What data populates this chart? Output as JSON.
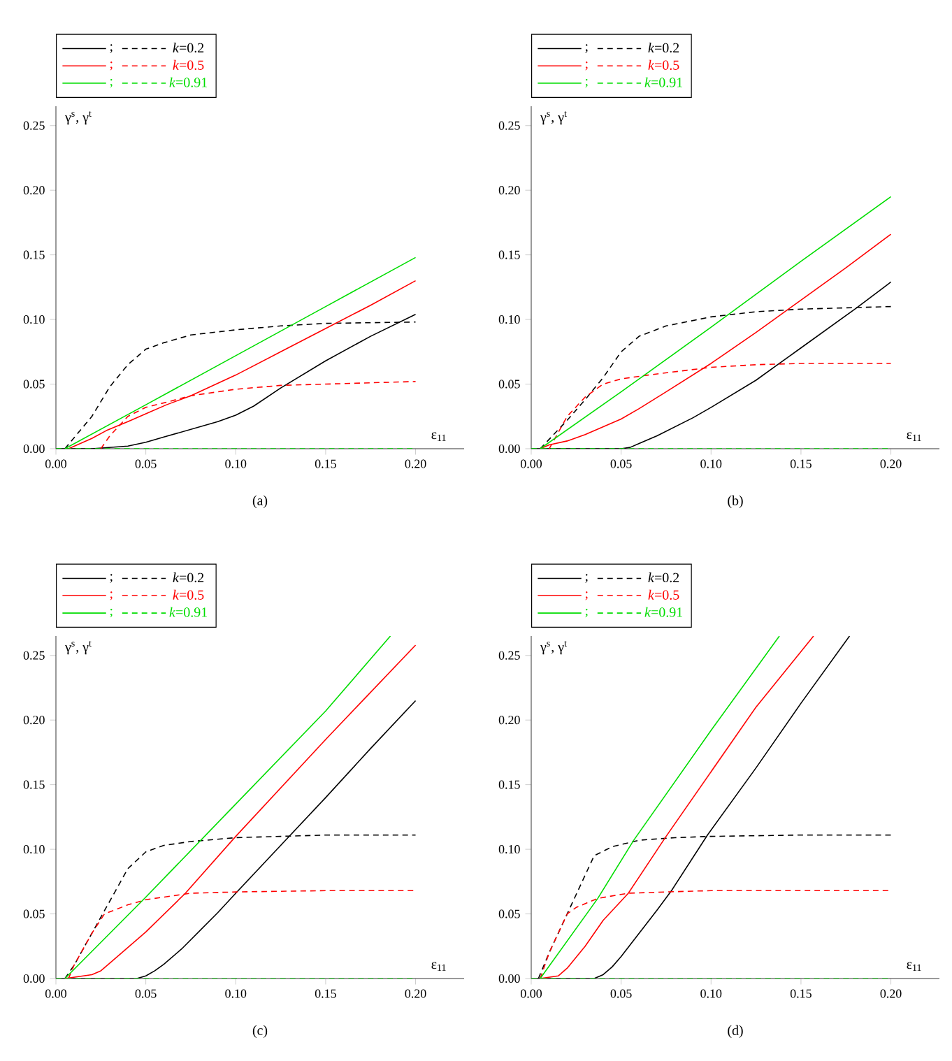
{
  "chart_data": [
    {
      "type": "line",
      "title": "(a)",
      "xlabel": "ε$_{11}$",
      "ylabel": "γ$^{s}$, γ$^{t}$",
      "xlim": [
        0,
        0.227
      ],
      "ylim": [
        0,
        0.265
      ],
      "xticks": [
        {
          "value": 0,
          "label": "0.00"
        },
        {
          "value": 0.05,
          "label": "0.05"
        },
        {
          "value": 0.1,
          "label": "0.10"
        },
        {
          "value": 0.15,
          "label": "0.15"
        },
        {
          "value": 0.2,
          "label": "0.20"
        }
      ],
      "yticks": [
        {
          "value": 0,
          "label": "0.00"
        },
        {
          "value": 0.05,
          "label": "0.05"
        },
        {
          "value": 0.1,
          "label": "0.10"
        },
        {
          "value": 0.15,
          "label": "0.15"
        },
        {
          "value": 0.2,
          "label": "0.20"
        },
        {
          "value": 0.25,
          "label": "0.25"
        }
      ],
      "legend": "top left",
      "series": [
        {
          "name": ";",
          "color": "#000000",
          "line_style": "solid",
          "x": [
            0,
            0.02,
            0.03,
            0.04,
            0.05,
            0.06,
            0.07,
            0.08,
            0.09,
            0.1,
            0.11,
            0.125,
            0.15,
            0.175,
            0.2
          ],
          "values": [
            0,
            0,
            0.001,
            0.002,
            0.005,
            0.009,
            0.013,
            0.017,
            0.021,
            0.026,
            0.033,
            0.047,
            0.068,
            0.087,
            0.104
          ]
        },
        {
          "name": "*k*=0.2",
          "color": "#000000",
          "line_style": "dashed",
          "x": [
            0.005,
            0.02,
            0.03,
            0.04,
            0.05,
            0.06,
            0.075,
            0.1,
            0.125,
            0.15,
            0.2
          ],
          "values": [
            0,
            0.025,
            0.048,
            0.065,
            0.077,
            0.082,
            0.088,
            0.092,
            0.095,
            0.097,
            0.098
          ]
        },
        {
          "name": ";",
          "color": "#ff0000",
          "line_style": "solid",
          "x": [
            0.007,
            0.02,
            0.028,
            0.04,
            0.05,
            0.0615,
            0.075,
            0.1,
            0.125,
            0.15,
            0.175,
            0.2
          ],
          "values": [
            0,
            0.008,
            0.014,
            0.021,
            0.027,
            0.034,
            0.041,
            0.057,
            0.075,
            0.093,
            0.111,
            0.13
          ]
        },
        {
          "name": "*k*=0.5",
          "color": "#ff0000",
          "line_style": "dashed",
          "x": [
            0.025,
            0.03,
            0.04,
            0.05,
            0.0615,
            0.075,
            0.1,
            0.125,
            0.15,
            0.2
          ],
          "values": [
            0,
            0.01,
            0.025,
            0.032,
            0.036,
            0.041,
            0.046,
            0.049,
            0.05,
            0.052
          ]
        },
        {
          "name": ";",
          "color": "#00dd00",
          "line_style": "solid",
          "x": [
            0.005,
            0.05,
            0.1,
            0.15,
            0.2
          ],
          "values": [
            0,
            0.034,
            0.072,
            0.11,
            0.148
          ]
        },
        {
          "name": "*k*=0.91",
          "color": "#00dd00",
          "line_style": "dashed",
          "x": [
            0,
            0.2
          ],
          "values": [
            0,
            0
          ]
        }
      ]
    },
    {
      "type": "line",
      "title": "(b)",
      "xlabel": "ε$_{11}$",
      "ylabel": "γ$^{s}$, γ$^{t}$",
      "xlim": [
        0,
        0.227
      ],
      "ylim": [
        0,
        0.265
      ],
      "xticks": [
        {
          "value": 0,
          "label": "0.00"
        },
        {
          "value": 0.05,
          "label": "0.05"
        },
        {
          "value": 0.1,
          "label": "0.10"
        },
        {
          "value": 0.15,
          "label": "0.15"
        },
        {
          "value": 0.2,
          "label": "0.20"
        }
      ],
      "yticks": [
        {
          "value": 0,
          "label": "0.00"
        },
        {
          "value": 0.05,
          "label": "0.05"
        },
        {
          "value": 0.1,
          "label": "0.10"
        },
        {
          "value": 0.15,
          "label": "0.15"
        },
        {
          "value": 0.2,
          "label": "0.20"
        },
        {
          "value": 0.25,
          "label": "0.25"
        }
      ],
      "legend": "top left",
      "series": [
        {
          "name": ";",
          "color": "#000000",
          "line_style": "solid",
          "x": [
            0,
            0.05,
            0.055,
            0.06,
            0.07,
            0.08,
            0.09,
            0.1,
            0.125,
            0.138,
            0.15,
            0.181,
            0.2
          ],
          "values": [
            0,
            0,
            0.001,
            0.004,
            0.01,
            0.017,
            0.024,
            0.032,
            0.053,
            0.066,
            0.078,
            0.109,
            0.129
          ]
        },
        {
          "name": "*k*=0.2",
          "color": "#000000",
          "line_style": "dashed",
          "x": [
            0.005,
            0.02,
            0.03,
            0.04,
            0.05,
            0.06,
            0.075,
            0.1,
            0.125,
            0.15,
            0.2
          ],
          "values": [
            0,
            0.022,
            0.038,
            0.055,
            0.075,
            0.087,
            0.095,
            0.102,
            0.106,
            0.108,
            0.11
          ]
        },
        {
          "name": ";",
          "color": "#ff0000",
          "line_style": "solid",
          "x": [
            0.005,
            0.01,
            0.02,
            0.03,
            0.04,
            0.05,
            0.06,
            0.075,
            0.1,
            0.125,
            0.15,
            0.175,
            0.2
          ],
          "values": [
            0,
            0.003,
            0.006,
            0.011,
            0.017,
            0.023,
            0.031,
            0.044,
            0.066,
            0.09,
            0.115,
            0.14,
            0.166
          ]
        },
        {
          "name": "*k*=0.5",
          "color": "#ff0000",
          "line_style": "dashed",
          "x": [
            0.01,
            0.02,
            0.03,
            0.04,
            0.05,
            0.065,
            0.1,
            0.125,
            0.15,
            0.2
          ],
          "values": [
            0,
            0.025,
            0.04,
            0.05,
            0.054,
            0.057,
            0.063,
            0.065,
            0.066,
            0.066
          ]
        },
        {
          "name": ";",
          "color": "#00dd00",
          "line_style": "solid",
          "x": [
            0.005,
            0.05,
            0.1,
            0.15,
            0.2
          ],
          "values": [
            0,
            0.044,
            0.094,
            0.145,
            0.195
          ]
        },
        {
          "name": "*k*=0.91",
          "color": "#00dd00",
          "line_style": "dashed",
          "x": [
            0,
            0.2
          ],
          "values": [
            0,
            0
          ]
        }
      ]
    },
    {
      "type": "line",
      "title": "(c)",
      "xlabel": "ε$_{11}$",
      "ylabel": "γ$^{s}$, γ$^{t}$",
      "xlim": [
        0,
        0.227
      ],
      "ylim": [
        0,
        0.265
      ],
      "xticks": [
        {
          "value": 0,
          "label": "0.00"
        },
        {
          "value": 0.05,
          "label": "0.05"
        },
        {
          "value": 0.1,
          "label": "0.10"
        },
        {
          "value": 0.15,
          "label": "0.15"
        },
        {
          "value": 0.2,
          "label": "0.20"
        }
      ],
      "yticks": [
        {
          "value": 0,
          "label": "0.00"
        },
        {
          "value": 0.05,
          "label": "0.05"
        },
        {
          "value": 0.1,
          "label": "0.10"
        },
        {
          "value": 0.15,
          "label": "0.15"
        },
        {
          "value": 0.2,
          "label": "0.20"
        },
        {
          "value": 0.25,
          "label": "0.25"
        }
      ],
      "legend": "top left",
      "series": [
        {
          "name": ";",
          "color": "#000000",
          "line_style": "solid",
          "x": [
            0,
            0.045,
            0.05,
            0.055,
            0.06,
            0.07,
            0.08,
            0.09,
            0.1,
            0.125,
            0.15,
            0.175,
            0.2
          ],
          "values": [
            0,
            0,
            0.002,
            0.006,
            0.011,
            0.023,
            0.037,
            0.051,
            0.066,
            0.103,
            0.14,
            0.178,
            0.215
          ]
        },
        {
          "name": "*k*=0.2",
          "color": "#000000",
          "line_style": "dashed",
          "x": [
            0.005,
            0.01,
            0.02,
            0.03,
            0.04,
            0.05,
            0.06,
            0.075,
            0.1,
            0.15,
            0.2
          ],
          "values": [
            0,
            0.01,
            0.035,
            0.06,
            0.085,
            0.098,
            0.103,
            0.106,
            0.109,
            0.111,
            0.111
          ]
        },
        {
          "name": ";",
          "color": "#ff0000",
          "line_style": "solid",
          "x": [
            0.005,
            0.02,
            0.025,
            0.03,
            0.04,
            0.05,
            0.072,
            0.1,
            0.15,
            0.2
          ],
          "values": [
            0,
            0.003,
            0.006,
            0.012,
            0.024,
            0.036,
            0.066,
            0.11,
            0.185,
            0.258
          ]
        },
        {
          "name": "*k*=0.5",
          "color": "#ff0000",
          "line_style": "dashed",
          "x": [
            0.007,
            0.01,
            0.02,
            0.027,
            0.04,
            0.05,
            0.075,
            0.1,
            0.15,
            0.2
          ],
          "values": [
            0,
            0.01,
            0.035,
            0.05,
            0.057,
            0.061,
            0.066,
            0.067,
            0.068,
            0.068
          ]
        },
        {
          "name": ";",
          "color": "#00dd00",
          "line_style": "solid",
          "x": [
            0.005,
            0.05,
            0.1,
            0.15,
            0.186
          ],
          "values": [
            0,
            0.063,
            0.135,
            0.207,
            0.265
          ]
        },
        {
          "name": "*k*=0.91",
          "color": "#00dd00",
          "line_style": "dashed",
          "x": [
            0,
            0.2
          ],
          "values": [
            0,
            0
          ]
        }
      ]
    },
    {
      "type": "line",
      "title": "(d)",
      "xlabel": "ε$_{11}$",
      "ylabel": "γ$^{s}$, γ$^{t}$",
      "xlim": [
        0,
        0.227
      ],
      "ylim": [
        0,
        0.265
      ],
      "xticks": [
        {
          "value": 0,
          "label": "0.00"
        },
        {
          "value": 0.05,
          "label": "0.05"
        },
        {
          "value": 0.1,
          "label": "0.10"
        },
        {
          "value": 0.15,
          "label": "0.15"
        },
        {
          "value": 0.2,
          "label": "0.20"
        }
      ],
      "yticks": [
        {
          "value": 0,
          "label": "0.00"
        },
        {
          "value": 0.05,
          "label": "0.05"
        },
        {
          "value": 0.1,
          "label": "0.10"
        },
        {
          "value": 0.15,
          "label": "0.15"
        },
        {
          "value": 0.2,
          "label": "0.20"
        },
        {
          "value": 0.25,
          "label": "0.25"
        }
      ],
      "legend": "top left",
      "series": [
        {
          "name": ";",
          "color": "#000000",
          "line_style": "solid",
          "x": [
            0,
            0.035,
            0.04,
            0.045,
            0.05,
            0.06,
            0.07,
            0.078,
            0.098,
            0.125,
            0.15,
            0.177
          ],
          "values": [
            0,
            0,
            0.003,
            0.009,
            0.017,
            0.035,
            0.053,
            0.068,
            0.111,
            0.163,
            0.213,
            0.265
          ]
        },
        {
          "name": "*k*=0.2",
          "color": "#000000",
          "line_style": "dashed",
          "x": [
            0.004,
            0.01,
            0.02,
            0.03,
            0.035,
            0.045,
            0.06,
            0.08,
            0.1,
            0.15,
            0.2
          ],
          "values": [
            0,
            0.02,
            0.05,
            0.08,
            0.095,
            0.102,
            0.107,
            0.109,
            0.11,
            0.111,
            0.111
          ]
        },
        {
          "name": ";",
          "color": "#ff0000",
          "line_style": "solid",
          "x": [
            0.005,
            0.015,
            0.02,
            0.03,
            0.04,
            0.054,
            0.075,
            0.1,
            0.125,
            0.157
          ],
          "values": [
            0,
            0.002,
            0.008,
            0.025,
            0.045,
            0.066,
            0.11,
            0.16,
            0.21,
            0.265
          ]
        },
        {
          "name": "*k*=0.5",
          "color": "#ff0000",
          "line_style": "dashed",
          "x": [
            0.005,
            0.01,
            0.02,
            0.025,
            0.037,
            0.054,
            0.075,
            0.1,
            0.15,
            0.2
          ],
          "values": [
            0,
            0.02,
            0.05,
            0.055,
            0.062,
            0.066,
            0.067,
            0.068,
            0.068,
            0.068
          ]
        },
        {
          "name": ";",
          "color": "#00dd00",
          "line_style": "solid",
          "x": [
            0.005,
            0.037,
            0.057,
            0.1,
            0.138
          ],
          "values": [
            0,
            0.062,
            0.107,
            0.192,
            0.265
          ]
        },
        {
          "name": "*k*=0.91",
          "color": "#00dd00",
          "line_style": "dashed",
          "x": [
            0,
            0.2
          ],
          "values": [
            0,
            0
          ]
        }
      ]
    }
  ]
}
